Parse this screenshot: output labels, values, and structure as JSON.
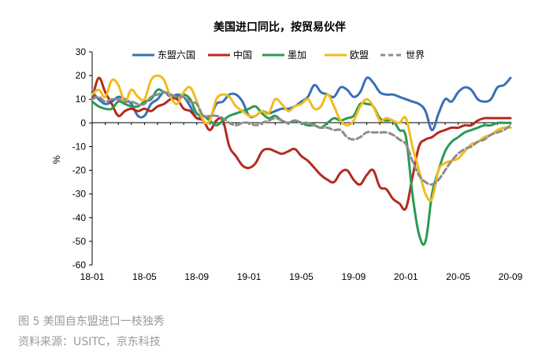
{
  "chart_data": {
    "type": "line",
    "title": "美国进口同比，按贸易伙伴",
    "ylabel": "%",
    "xlabel": "",
    "ylim": [
      -60,
      30
    ],
    "yticks": [
      30,
      20,
      10,
      0,
      -10,
      -20,
      -30,
      -40,
      -50,
      -60
    ],
    "x_start": "2018-01",
    "x_end": "2020-09",
    "xtick_labels": [
      "18-01",
      "18-05",
      "18-09",
      "19-01",
      "19-05",
      "19-09",
      "20-01",
      "20-05",
      "20-09"
    ],
    "xtick_month_index": [
      0,
      4,
      8,
      12,
      16,
      20,
      24,
      28,
      32
    ],
    "grid": false,
    "legend_position": "top",
    "series": [
      {
        "name": "东盟六国",
        "color": "#3a6fb6",
        "dashed": false,
        "x": [
          0,
          0.5,
          1,
          1.5,
          2,
          2.5,
          3,
          3.5,
          4,
          4.5,
          5,
          5.5,
          6,
          6.5,
          7,
          7.5,
          8,
          8.5,
          9,
          9.5,
          10,
          10.5,
          11,
          11.5,
          12,
          12.5,
          13,
          13.5,
          14,
          14.5,
          15,
          15.5,
          16,
          16.5,
          17,
          17.5,
          18,
          18.5,
          19,
          19.5,
          20,
          20.5,
          21,
          21.5,
          22,
          22.5,
          23,
          23.5,
          24,
          24.5,
          25,
          25.5,
          26,
          26.5,
          27,
          27.5,
          28,
          28.5,
          29,
          29.5,
          30,
          30.5,
          31,
          31.5,
          32
        ],
        "values": [
          13,
          10,
          8,
          9,
          11,
          10,
          8,
          3,
          3,
          8,
          10,
          13,
          11,
          12,
          11,
          7,
          2,
          3,
          2,
          8,
          9,
          12,
          12,
          9,
          3,
          3,
          5,
          4,
          5,
          6,
          6,
          7,
          9,
          11,
          16,
          13,
          12,
          11,
          15,
          14,
          11,
          13,
          19,
          17,
          13,
          12,
          12,
          11,
          10,
          9,
          8,
          5,
          -3,
          4,
          10,
          9,
          13,
          15,
          14,
          10,
          9,
          10,
          15,
          16,
          19
        ]
      },
      {
        "name": "中国",
        "color": "#b52a1e",
        "dashed": false,
        "x": [
          0,
          0.5,
          1,
          1.5,
          2,
          2.5,
          3,
          3.5,
          4,
          4.5,
          5,
          5.5,
          6,
          6.5,
          7,
          7.5,
          8,
          8.5,
          9,
          9.5,
          10,
          10.5,
          11,
          11.5,
          12,
          12.5,
          13,
          13.5,
          14,
          14.5,
          15,
          15.5,
          16,
          16.5,
          17,
          17.5,
          18,
          18.5,
          19,
          19.5,
          20,
          20.5,
          21,
          21.5,
          22,
          22.5,
          23,
          23.5,
          24,
          24.5,
          25,
          25.5,
          26,
          26.5,
          27,
          27.5,
          28,
          28.5,
          29,
          29.5,
          30,
          30.5,
          31,
          31.5,
          32
        ],
        "values": [
          10,
          19,
          13,
          8,
          3,
          5,
          6,
          5,
          6,
          5,
          7,
          8,
          10,
          10,
          6,
          5,
          2,
          1,
          -3,
          1,
          1,
          -10,
          -14,
          -18,
          -19,
          -17,
          -12,
          -11,
          -12,
          -13,
          -12,
          -11,
          -14,
          -16,
          -19,
          -22,
          -24,
          -25,
          -21,
          -20,
          -24,
          -26,
          -22,
          -20,
          -27,
          -28,
          -32,
          -34,
          -36,
          -23,
          -10,
          -7,
          -6,
          -4,
          -3,
          -2,
          -2,
          -1,
          -1,
          1,
          2,
          2,
          2,
          2,
          2
        ]
      },
      {
        "name": "墨加",
        "color": "#2a9a55",
        "dashed": false,
        "x": [
          0,
          0.5,
          1,
          1.5,
          2,
          2.5,
          3,
          3.5,
          4,
          4.5,
          5,
          5.5,
          6,
          6.5,
          7,
          7.5,
          8,
          8.5,
          9,
          9.5,
          10,
          10.5,
          11,
          11.5,
          12,
          12.5,
          13,
          13.5,
          14,
          14.5,
          15,
          15.5,
          16,
          16.5,
          17,
          17.5,
          18,
          18.5,
          19,
          19.5,
          20,
          20.5,
          21,
          21.5,
          22,
          22.5,
          23,
          23.5,
          24,
          24.5,
          25,
          25.5,
          26,
          26.5,
          27,
          27.5,
          28,
          28.5,
          29,
          29.5,
          30,
          30.5,
          31,
          31.5,
          32
        ],
        "values": [
          9,
          7,
          6,
          6,
          9,
          8,
          7,
          7,
          9,
          10,
          14,
          13,
          12,
          11,
          12,
          10,
          4,
          3,
          1,
          -1,
          1,
          3,
          4,
          5,
          6,
          7,
          4,
          2,
          3,
          1,
          0,
          1,
          0,
          -1,
          -1,
          -2,
          0,
          2,
          1,
          2,
          3,
          8,
          8,
          7,
          2,
          1,
          1,
          -3,
          -6,
          -30,
          -47,
          -50,
          -30,
          -20,
          -12,
          -8,
          -6,
          -4,
          -3,
          -2,
          -1,
          -1,
          0,
          0,
          0
        ]
      },
      {
        "name": "欧盟",
        "color": "#f2bc1a",
        "dashed": false,
        "x": [
          0,
          0.5,
          1,
          1.5,
          2,
          2.5,
          3,
          3.5,
          4,
          4.5,
          5,
          5.5,
          6,
          6.5,
          7,
          7.5,
          8,
          8.5,
          9,
          9.5,
          10,
          10.5,
          11,
          11.5,
          12,
          12.5,
          13,
          13.5,
          14,
          14.5,
          15,
          15.5,
          16,
          16.5,
          17,
          17.5,
          18,
          18.5,
          19,
          19.5,
          20,
          20.5,
          21,
          21.5,
          22,
          22.5,
          23,
          23.5,
          24,
          24.5,
          25,
          25.5,
          26,
          26.5,
          27,
          27.5,
          28,
          28.5,
          29,
          29.5,
          30,
          30.5,
          31,
          31.5,
          32
        ],
        "values": [
          12,
          14,
          11,
          18,
          16,
          9,
          14,
          11,
          10,
          18,
          20,
          18,
          11,
          8,
          13,
          15,
          9,
          1,
          1,
          10,
          12,
          11,
          7,
          5,
          3,
          3,
          5,
          4,
          10,
          8,
          5,
          7,
          8,
          10,
          6,
          7,
          12,
          7,
          1,
          -1,
          1,
          7,
          10,
          7,
          1,
          2,
          1,
          0,
          2,
          -10,
          -20,
          -30,
          -32,
          -20,
          -17,
          -16,
          -15,
          -12,
          -9,
          -8,
          -6,
          -5,
          -3,
          -2,
          -2
        ]
      },
      {
        "name": "世界",
        "color": "#8c8c8c",
        "dashed": true,
        "x": [
          0,
          0.5,
          1,
          1.5,
          2,
          2.5,
          3,
          3.5,
          4,
          4.5,
          5,
          5.5,
          6,
          6.5,
          7,
          7.5,
          8,
          8.5,
          9,
          9.5,
          10,
          10.5,
          11,
          11.5,
          12,
          12.5,
          13,
          13.5,
          14,
          14.5,
          15,
          15.5,
          16,
          16.5,
          17,
          17.5,
          18,
          18.5,
          19,
          19.5,
          20,
          20.5,
          21,
          21.5,
          22,
          22.5,
          23,
          23.5,
          24,
          24.5,
          25,
          25.5,
          26,
          26.5,
          27,
          27.5,
          28,
          28.5,
          29,
          29.5,
          30,
          30.5,
          31,
          31.5,
          32
        ],
        "values": [
          10,
          11,
          9,
          10,
          10,
          9,
          9,
          8,
          8,
          11,
          12,
          13,
          12,
          11,
          11,
          9,
          8,
          3,
          3,
          3,
          2,
          0,
          -1,
          0,
          0,
          -1,
          0,
          1,
          2,
          1,
          0,
          1,
          0,
          0,
          -1,
          -2,
          -2,
          -3,
          -3,
          -6,
          -7,
          -6,
          -4,
          -4,
          -4,
          -4,
          -5,
          -7,
          -9,
          -16,
          -22,
          -25,
          -26,
          -24,
          -20,
          -16,
          -13,
          -11,
          -10,
          -8,
          -7,
          -5,
          -4,
          -3,
          -1
        ]
      }
    ]
  },
  "captions": {
    "figure": "图 5 美国自东盟进口一枝独秀",
    "source": "资料来源：USITC，京东科技"
  }
}
